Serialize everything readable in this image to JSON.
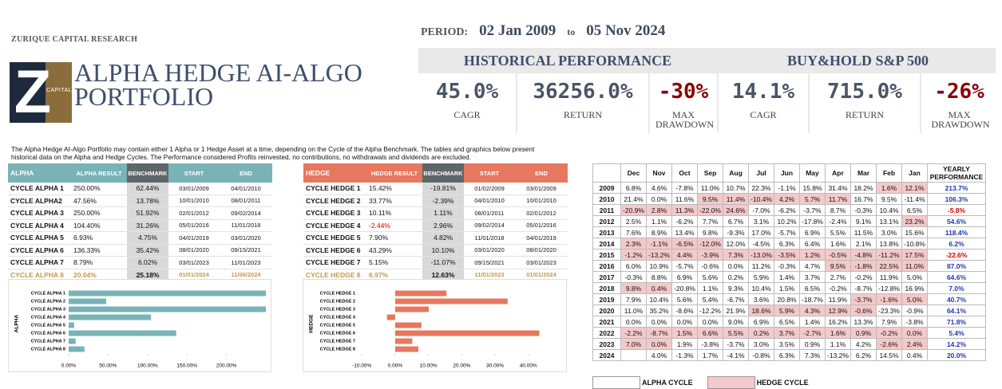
{
  "header": {
    "firm": "ZURIQUE CAPITAL RESEARCH",
    "logo_letter": "Z",
    "logo_word": "CAPITAL",
    "title_lines": [
      "ALPHA HEDGE AI-ALGO",
      "PORTFOLIO"
    ]
  },
  "period": {
    "label": "PERIOD:",
    "start": "02 Jan 2009",
    "separator": "to",
    "end": "05 Nov 2024"
  },
  "performance": [
    {
      "title": "HISTORICAL PERFORMANCE",
      "metrics": [
        {
          "value": "45.0%",
          "label": "CAGR"
        },
        {
          "value": "36256.0%",
          "label": "RETURN"
        },
        {
          "value": "-30%",
          "label": "MAX DRAWDOWN"
        }
      ]
    },
    {
      "title": "BUY&HOLD S&P 500",
      "metrics": [
        {
          "value": "14.1%",
          "label": "CAGR"
        },
        {
          "value": "715.0%",
          "label": "RETURN"
        },
        {
          "value": "-26%",
          "label": "MAX DRAWDOWN"
        }
      ]
    }
  ],
  "description": "The Alpha Hedge AI-Algo Portfolio may contain either 1 Alpha or 1 Hedge Asset at a time, depending on the Cycle of the Alpha Benchmark. The tables and graphics below present historical data on the Alpha and Hedge Cycles. The Performance considered Profits reinvested, no contributions, no withdrawals and dividends are excluded.",
  "alpha_table": {
    "columns": [
      "ALPHA",
      "ALPHA RESULT",
      "BENCHMARK",
      "START",
      "END"
    ],
    "rows": [
      [
        "CYCLE ALPHA 1",
        "250.00%",
        "62.44%",
        "03/01/2009",
        "04/01/2010"
      ],
      [
        "CYCLE ALPHA2",
        "47.56%",
        "13.78%",
        "10/01/2010",
        "08/01/2011"
      ],
      [
        "CYCLE ALPHA 3",
        "250.00%",
        "51.92%",
        "02/01/2012",
        "09/02/2014"
      ],
      [
        "CYCLE ALPHA 4",
        "104.40%",
        "31.26%",
        "05/01/2016",
        "11/01/2018"
      ],
      [
        "CYCLE ALPHA 5",
        "6.93%",
        "4.75%",
        "04/01/2019",
        "03/01/2020"
      ],
      [
        "CYCLE ALPHA 6",
        "136.33%",
        "35.42%",
        "08/01/2020",
        "09/15/2021"
      ],
      [
        "CYCLE ALPHA 7",
        "8.79%",
        "6.02%",
        "03/01/2023",
        "11/01/2023"
      ],
      [
        "CYCLE ALPHA 8",
        "20.04%",
        "25.18%",
        "01/01/2024",
        "11/06/2024"
      ]
    ]
  },
  "hedge_table": {
    "columns": [
      "HEDGE",
      "HEDGE RESULT",
      "BENCHMARK",
      "START",
      "END"
    ],
    "rows": [
      [
        "CYCLE HEDGE 1",
        "15.42%",
        "-19.81%",
        "01/02/2009",
        "03/01/2009"
      ],
      [
        "CYCLE HEDGE 2",
        "33.77%",
        "-2.39%",
        "04/01/2010",
        "10/01/2010"
      ],
      [
        "CYCLE HEDGE 3",
        "10.11%",
        "1.11%",
        "08/01/2011",
        "02/01/2012"
      ],
      [
        "CYCLE HEDGE 4",
        "-2.44%",
        "2.96%",
        "09/02/2014",
        "05/01/2016"
      ],
      [
        "CYCLE HEDGE 5",
        "7.90%",
        "4.82%",
        "11/01/2018",
        "04/01/2019"
      ],
      [
        "CYCLE HEDGE 6",
        "43.29%",
        "10.10%",
        "03/01/2020",
        "08/01/2020"
      ],
      [
        "CYCLE HEDGE 7",
        "5.15%",
        "-11.07%",
        "09/15/2021",
        "03/01/2023"
      ],
      [
        "CYCLE HEDGE 8",
        "6.97%",
        "12.63%",
        "11/01/2023",
        "01/01/2024"
      ]
    ]
  },
  "chart_data": [
    {
      "type": "hbar",
      "y_label": "ALPHA",
      "color": "#7ab3b6",
      "categories": [
        "CYCLE ALPHA 1",
        "CYCLE ALPHA 2",
        "CYCLE ALPHA 3",
        "CYCLE ALPHA 4",
        "CYCLE ALPHA 5",
        "CYCLE ALPHA 6",
        "CYCLE ALPHA 7",
        "CYCLE ALPHA 8"
      ],
      "values": [
        250,
        47.56,
        250,
        104.4,
        6.93,
        136.33,
        8.79,
        20.04
      ],
      "xlim": [
        0,
        250
      ],
      "xticks": [
        {
          "value": 0,
          "label": "0.00%"
        },
        {
          "value": 50,
          "label": "50.00%"
        },
        {
          "value": 100,
          "label": "100.00%"
        },
        {
          "value": 150,
          "label": "150.00%"
        },
        {
          "value": 200,
          "label": "200.00%"
        }
      ]
    },
    {
      "type": "hbar",
      "y_label": "HEDGE",
      "color": "#e5785f",
      "categories": [
        "CYCLE HEDGE 1",
        "CYCLE HEDGE 2",
        "CYCLE HEDGE 3",
        "CYCLE HEDGE 4",
        "CYCLE HEDGE 5",
        "CYCLE HEDGE 6",
        "CYCLE HEDGE 7",
        "CYCLE HEDGE 8"
      ],
      "values": [
        15.42,
        33.77,
        10.11,
        -2.44,
        7.9,
        43.29,
        5.15,
        6.97
      ],
      "xlim": [
        -11,
        47
      ],
      "xticks": [
        {
          "value": -10,
          "label": "-10.00%"
        },
        {
          "value": 0,
          "label": "0.00%"
        },
        {
          "value": 10,
          "label": "10.00%"
        },
        {
          "value": 20,
          "label": "20.00%"
        },
        {
          "value": 30,
          "label": "30.00%"
        },
        {
          "value": 40,
          "label": "40.00%"
        }
      ]
    }
  ],
  "monthly_table": {
    "columns": [
      "Dec",
      "Nov",
      "Oct",
      "Sep",
      "Aug",
      "Jul",
      "Jun",
      "May",
      "Apr",
      "Mar",
      "Feb",
      "Jan",
      "YEARLY PERFORMANCE"
    ],
    "rows": [
      {
        "year": "2009",
        "cells": [
          "6.8%",
          "4.6%",
          "-7.8%",
          "11.0%",
          "10.7%",
          "22.3%",
          "-1.1%",
          "15.8%",
          "31.4%",
          "18.2%",
          "1.6%",
          "12.1%",
          "213.7%"
        ],
        "hedge": [
          false,
          false,
          false,
          false,
          false,
          false,
          false,
          false,
          false,
          false,
          true,
          true
        ]
      },
      {
        "year": "2010",
        "cells": [
          "21.4%",
          "0.0%",
          "11.6%",
          "9.5%",
          "11.4%",
          "-10.4%",
          "4.2%",
          "5.7%",
          "11.7%",
          "16.7%",
          "9.5%",
          "-11.4%",
          "106.3%"
        ],
        "hedge": [
          false,
          false,
          false,
          true,
          true,
          true,
          true,
          true,
          true,
          false,
          false,
          false
        ]
      },
      {
        "year": "2011",
        "cells": [
          "-20.9%",
          "2.8%",
          "11.3%",
          "-22.0%",
          "24.6%",
          "-7.0%",
          "-6.2%",
          "-3.7%",
          "8.7%",
          "-0.3%",
          "10.4%",
          "6.5%",
          "-5.8%"
        ],
        "hedge": [
          true,
          true,
          true,
          true,
          true,
          false,
          false,
          false,
          false,
          false,
          false,
          false
        ]
      },
      {
        "year": "2012",
        "cells": [
          "2.5%",
          "1.1%",
          "-6.2%",
          "7.7%",
          "6.7%",
          "3.1%",
          "10.2%",
          "-17.8%",
          "-2.4%",
          "9.1%",
          "13.1%",
          "23.2%",
          "54.6%"
        ],
        "hedge": [
          false,
          false,
          false,
          false,
          false,
          false,
          false,
          false,
          false,
          false,
          false,
          true
        ]
      },
      {
        "year": "2013",
        "cells": [
          "7.6%",
          "8.9%",
          "13.4%",
          "9.8%",
          "-9.3%",
          "17.0%",
          "-5.7%",
          "6.9%",
          "5.5%",
          "11.5%",
          "3.0%",
          "15.6%",
          "118.4%"
        ],
        "hedge": [
          false,
          false,
          false,
          false,
          false,
          false,
          false,
          false,
          false,
          false,
          false,
          false
        ]
      },
      {
        "year": "2014",
        "cells": [
          "2.3%",
          "-1.1%",
          "-6.5%",
          "-12.0%",
          "12.0%",
          "-4.5%",
          "6.3%",
          "6.4%",
          "1.6%",
          "2.1%",
          "13.8%",
          "-10.8%",
          "6.2%"
        ],
        "hedge": [
          true,
          true,
          true,
          true,
          false,
          false,
          false,
          false,
          false,
          false,
          false,
          false
        ]
      },
      {
        "year": "2015",
        "cells": [
          "-1.2%",
          "-13.2%",
          "4.4%",
          "-3.9%",
          "7.3%",
          "-13.0%",
          "-3.5%",
          "1.2%",
          "-0.5%",
          "-4.8%",
          "-11.2%",
          "17.5%",
          "-22.6%"
        ],
        "hedge": [
          true,
          true,
          true,
          true,
          true,
          true,
          true,
          true,
          true,
          true,
          true,
          true
        ]
      },
      {
        "year": "2016",
        "cells": [
          "6.0%",
          "10.9%",
          "-5.7%",
          "-0.6%",
          "0.0%",
          "11.2%",
          "-0.3%",
          "4.7%",
          "9.5%",
          "-1.8%",
          "22.5%",
          "11.0%",
          "87.0%"
        ],
        "hedge": [
          false,
          false,
          false,
          false,
          false,
          false,
          false,
          false,
          true,
          true,
          true,
          true
        ]
      },
      {
        "year": "2017",
        "cells": [
          "-0.3%",
          "8.8%",
          "6.9%",
          "5.6%",
          "0.2%",
          "5.9%",
          "1.4%",
          "3.7%",
          "2.7%",
          "-0.2%",
          "11.9%",
          "5.0%",
          "64.6%"
        ],
        "hedge": [
          false,
          false,
          false,
          false,
          false,
          false,
          false,
          false,
          false,
          false,
          false,
          false
        ]
      },
      {
        "year": "2018",
        "cells": [
          "9.8%",
          "0.4%",
          "-20.8%",
          "1.1%",
          "9.3%",
          "10.4%",
          "1.5%",
          "6.5%",
          "-0.2%",
          "-8.7%",
          "-12.8%",
          "16.9%",
          "7.0%"
        ],
        "hedge": [
          true,
          true,
          false,
          false,
          false,
          false,
          false,
          false,
          false,
          false,
          false,
          false
        ]
      },
      {
        "year": "2019",
        "cells": [
          "7.9%",
          "10.4%",
          "5.6%",
          "5.4%",
          "-6.7%",
          "3.6%",
          "20.8%",
          "-18.7%",
          "11.9%",
          "-3.7%",
          "-1.6%",
          "5.0%",
          "40.7%"
        ],
        "hedge": [
          false,
          false,
          false,
          false,
          false,
          false,
          false,
          false,
          false,
          true,
          true,
          true
        ]
      },
      {
        "year": "2020",
        "cells": [
          "11.0%",
          "35.2%",
          "-8.6%",
          "-12.2%",
          "21.9%",
          "18.6%",
          "5.9%",
          "4.3%",
          "12.9%",
          "-0.6%",
          "-23.3%",
          "-0.9%",
          "64.1%"
        ],
        "hedge": [
          false,
          false,
          false,
          false,
          false,
          true,
          true,
          true,
          true,
          true,
          false,
          false
        ]
      },
      {
        "year": "2021",
        "cells": [
          "0.0%",
          "0.0%",
          "0.0%",
          "0.0%",
          "9.0%",
          "6.9%",
          "6.5%",
          "1.4%",
          "16.2%",
          "13.3%",
          "7.9%",
          "-3.8%",
          "71.8%"
        ],
        "hedge": [
          false,
          false,
          false,
          false,
          false,
          false,
          false,
          false,
          false,
          false,
          false,
          false
        ]
      },
      {
        "year": "2022",
        "cells": [
          "-2.2%",
          "-8.7%",
          "1.5%",
          "6.6%",
          "5.5%",
          "0.2%",
          "3.7%",
          "-2.7%",
          "1.6%",
          "0.9%",
          "-0.2%",
          "0.0%",
          "5.4%"
        ],
        "hedge": [
          true,
          true,
          true,
          true,
          true,
          true,
          true,
          true,
          true,
          true,
          true,
          true
        ]
      },
      {
        "year": "2023",
        "cells": [
          "7.0%",
          "0.0%",
          "1.9%",
          "-3.8%",
          "-3.7%",
          "3.0%",
          "3.5%",
          "0.9%",
          "1.1%",
          "4.2%",
          "-2.6%",
          "2.4%",
          "14.2%"
        ],
        "hedge": [
          true,
          true,
          false,
          false,
          false,
          false,
          false,
          false,
          false,
          false,
          true,
          true
        ]
      },
      {
        "year": "2024",
        "cells": [
          null,
          "4.0%",
          "-1.3%",
          "1.7%",
          "-4.1%",
          "-0.8%",
          "6.3%",
          "7.3%",
          "-13.2%",
          "6.2%",
          "14.5%",
          "0.4%",
          "20.0%"
        ],
        "hedge": [
          false,
          false,
          false,
          false,
          false,
          false,
          false,
          false,
          false,
          false,
          false,
          false
        ]
      }
    ]
  },
  "legend": [
    {
      "label": "ALPHA CYCLE",
      "color": "#ffffff"
    },
    {
      "label": "HEDGE CYCLE",
      "color": "#f4c9c9"
    }
  ]
}
